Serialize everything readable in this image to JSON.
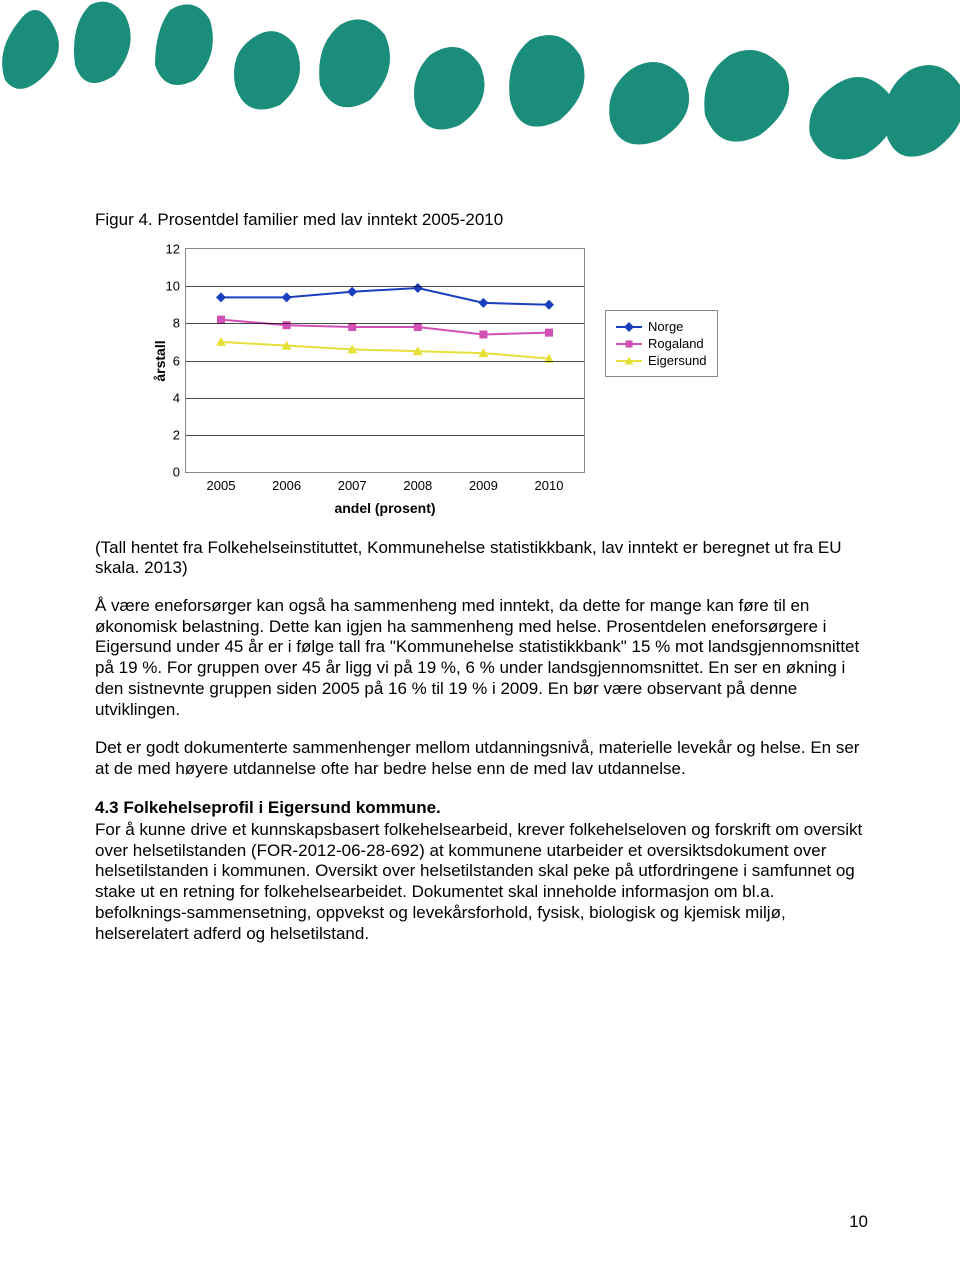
{
  "header_image_color": "#1a8e7a",
  "figure_title": "Figur 4. Prosentdel familier med lav inntekt 2005-2010",
  "chart": {
    "type": "line",
    "ylabel": "årstall",
    "xlabel": "andel (prosent)",
    "xlim": [
      0,
      5
    ],
    "ylim": [
      0,
      12
    ],
    "yticks": [
      0,
      2,
      4,
      6,
      8,
      10,
      12
    ],
    "xticks": [
      "2005",
      "2006",
      "2007",
      "2008",
      "2009",
      "2010"
    ],
    "grid_color": "#000000",
    "background_color": "#ffffff",
    "series": [
      {
        "name": "Norge",
        "color": "#1a3fbf",
        "marker": "diamond",
        "values": [
          9.4,
          9.4,
          9.7,
          9.9,
          9.1,
          9.0
        ]
      },
      {
        "name": "Rogaland",
        "color": "#d24fb6",
        "marker": "square",
        "values": [
          8.2,
          7.9,
          7.8,
          7.8,
          7.4,
          7.5
        ]
      },
      {
        "name": "Eigersund",
        "color": "#e6e03a",
        "marker": "triangle",
        "values": [
          7.0,
          6.8,
          6.6,
          6.5,
          6.4,
          6.1
        ]
      }
    ]
  },
  "source_text": "(Tall hentet fra Folkehelseinstituttet, Kommunehelse statistikkbank, lav inntekt er beregnet ut fra EU skala. 2013)",
  "para1": "Å være eneforsørger kan også ha sammenheng med inntekt, da dette for mange kan føre til en økonomisk belastning. Dette kan igjen ha sammenheng med helse. Prosentdelen eneforsørgere i Eigersund under 45 år er i følge tall fra \"Kommunehelse statistikkbank\" 15 % mot landsgjennomsnittet på 19 %. For gruppen over 45 år ligg vi på 19 %, 6 % under landsgjennomsnittet. En ser en økning i den sistnevnte gruppen siden 2005 på 16 % til 19 % i 2009. En bør være observant på denne utviklingen.",
  "para2": "Det er godt dokumenterte sammenhenger mellom utdanningsnivå, materielle levekår og helse. En ser at de med høyere utdannelse ofte har bedre helse enn de med lav utdannelse.",
  "subheading": "4.3 Folkehelseprofil i Eigersund kommune.",
  "para3": "For å kunne drive et kunnskapsbasert folkehelsearbeid, krever folkehelseloven og forskrift om oversikt over helsetilstanden (FOR-2012-06-28-692) at kommunene utarbeider et oversiktsdokument over helsetilstanden i kommunen. Oversikt over helsetilstanden skal peke på utfordringene i samfunnet og stake ut en retning for folkehelsearbeidet. Dokumentet skal inneholde informasjon om bl.a. befolknings-sammensetning, oppvekst og levekårsforhold, fysisk, biologisk og kjemisk miljø, helserelatert adferd og helsetilstand.",
  "page_number": "10"
}
